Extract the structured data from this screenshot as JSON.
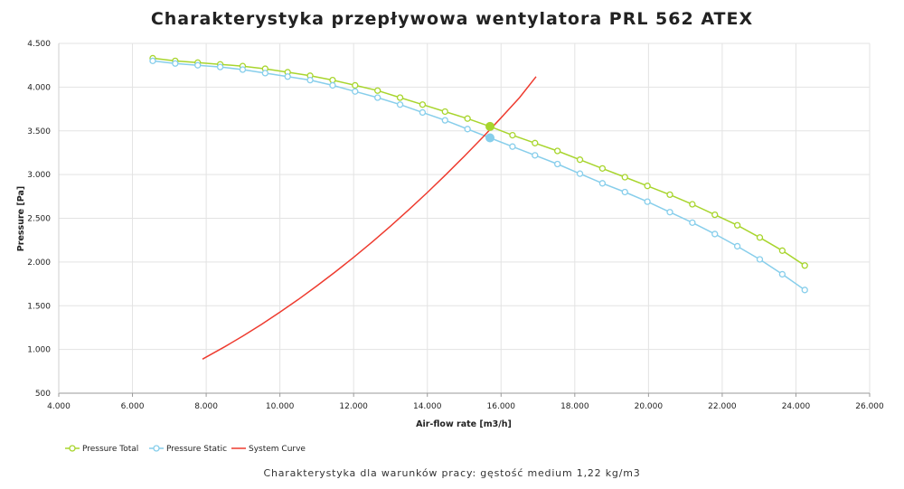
{
  "chart_data": {
    "type": "line",
    "title": "Charakterystyka przepływowa wentylatora PRL 562 ATEX",
    "subtitle": "Charakterystyka dla warunków pracy: gęstość medium 1,22 kg/m3",
    "xlabel": "Air-flow rate [m3/h]",
    "ylabel": "Pressure [Pa]",
    "xlim": [
      4000,
      26000
    ],
    "ylim": [
      500,
      4500
    ],
    "x_ticks": [
      4000,
      6000,
      8000,
      10000,
      12000,
      14000,
      16000,
      18000,
      20000,
      22000,
      24000,
      26000
    ],
    "x_tick_labels": [
      "4.000",
      "6.000",
      "8.000",
      "10.000",
      "12.000",
      "14.000",
      "16.000",
      "18.000",
      "20.000",
      "22.000",
      "24.000",
      "26.000"
    ],
    "y_ticks": [
      500,
      1000,
      1500,
      2000,
      2500,
      3000,
      3500,
      4000,
      4500
    ],
    "y_tick_labels": [
      "500",
      "1.000",
      "1.500",
      "2.000",
      "2.500",
      "3.000",
      "3.500",
      "4.000",
      "4.500"
    ],
    "grid": true,
    "legend_position": "bottom-left",
    "series": [
      {
        "name": "Pressure Total",
        "color": "#a8d52d",
        "marker": "circle",
        "x": [
          6550,
          7160,
          7770,
          8380,
          8990,
          9600,
          10210,
          10820,
          11430,
          12040,
          12650,
          13260,
          13870,
          14480,
          15090,
          15700,
          16310,
          16920,
          17530,
          18140,
          18750,
          19360,
          19970,
          20580,
          21190,
          21800,
          22410,
          23020,
          23630,
          24240
        ],
        "y": [
          4330,
          4300,
          4280,
          4260,
          4240,
          4210,
          4170,
          4130,
          4080,
          4020,
          3960,
          3880,
          3800,
          3720,
          3640,
          3550,
          3450,
          3360,
          3270,
          3170,
          3070,
          2970,
          2870,
          2770,
          2660,
          2540,
          2420,
          2280,
          2130,
          1960
        ]
      },
      {
        "name": "Pressure Static",
        "color": "#87ceeb",
        "marker": "circle",
        "x": [
          6550,
          7160,
          7770,
          8380,
          8990,
          9600,
          10210,
          10820,
          11430,
          12040,
          12650,
          13260,
          13870,
          14480,
          15090,
          15700,
          16310,
          16920,
          17530,
          18140,
          18750,
          19360,
          19970,
          20580,
          21190,
          21800,
          22410,
          23020,
          23630,
          24240
        ],
        "y": [
          4300,
          4270,
          4250,
          4230,
          4200,
          4160,
          4120,
          4080,
          4020,
          3950,
          3880,
          3800,
          3710,
          3620,
          3520,
          3420,
          3320,
          3220,
          3120,
          3010,
          2900,
          2800,
          2690,
          2570,
          2450,
          2320,
          2180,
          2030,
          1860,
          1680
        ]
      },
      {
        "name": "System Curve",
        "color": "#ee3b2f",
        "marker": "none",
        "x": [
          7900,
          8500,
          9000,
          9500,
          10000,
          10500,
          11000,
          11500,
          12000,
          12500,
          13000,
          13500,
          14000,
          14500,
          15000,
          15500,
          16000,
          16500,
          16950
        ],
        "y": [
          890,
          1030,
          1155,
          1287,
          1426,
          1572,
          1726,
          1886,
          2054,
          2228,
          2410,
          2599,
          2795,
          2998,
          3208,
          3425,
          3649,
          3880,
          4120
        ]
      }
    ],
    "operating_point": {
      "x": 15700,
      "y_total": 3550,
      "y_static": 3420
    }
  }
}
